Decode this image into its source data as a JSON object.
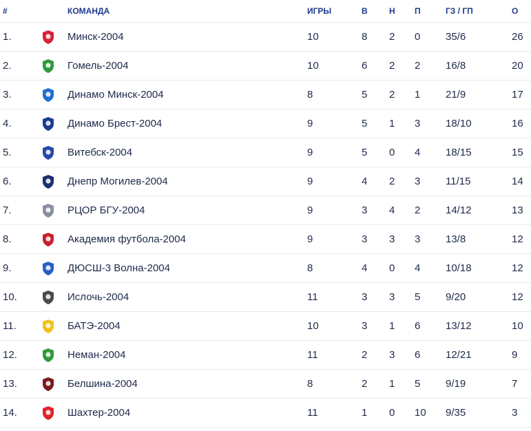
{
  "header": {
    "rank": "#",
    "team": "КОМАНДА",
    "games": "ИГРЫ",
    "wins": "В",
    "draws": "Н",
    "losses": "П",
    "goals": "ГЗ / ГП",
    "points": "О"
  },
  "rows": [
    {
      "rank": "1.",
      "team": "Минск-2004",
      "games": "10",
      "w": "8",
      "d": "2",
      "l": "0",
      "goals": "35/6",
      "pts": "26",
      "logo": "minsk-logo",
      "color": "#d8233a"
    },
    {
      "rank": "2.",
      "team": "Гомель-2004",
      "games": "10",
      "w": "6",
      "d": "2",
      "l": "2",
      "goals": "16/8",
      "pts": "20",
      "logo": "gomel-logo",
      "color": "#2e9a3e"
    },
    {
      "rank": "3.",
      "team": "Динамо Минск-2004",
      "games": "8",
      "w": "5",
      "d": "2",
      "l": "1",
      "goals": "21/9",
      "pts": "17",
      "logo": "dinamo-minsk-logo",
      "color": "#1f6fd0"
    },
    {
      "rank": "4.",
      "team": "Динамо Брест-2004",
      "games": "9",
      "w": "5",
      "d": "1",
      "l": "3",
      "goals": "18/10",
      "pts": "16",
      "logo": "dinamo-brest-logo",
      "color": "#1a3d8f"
    },
    {
      "rank": "5.",
      "team": "Витебск-2004",
      "games": "9",
      "w": "5",
      "d": "0",
      "l": "4",
      "goals": "18/15",
      "pts": "15",
      "logo": "vitebsk-logo",
      "color": "#2547a8"
    },
    {
      "rank": "6.",
      "team": "Днепр Могилев-2004",
      "games": "9",
      "w": "4",
      "d": "2",
      "l": "3",
      "goals": "11/15",
      "pts": "14",
      "logo": "dnepr-logo",
      "color": "#1b2f73"
    },
    {
      "rank": "7.",
      "team": "РЦОР БГУ-2004",
      "games": "9",
      "w": "3",
      "d": "4",
      "l": "2",
      "goals": "14/12",
      "pts": "13",
      "logo": "rcor-bgu-logo",
      "color": "#8a8fa0"
    },
    {
      "rank": "8.",
      "team": "Академия футбола-2004",
      "games": "9",
      "w": "3",
      "d": "3",
      "l": "3",
      "goals": "13/8",
      "pts": "12",
      "logo": "academy-logo",
      "color": "#c8202f"
    },
    {
      "rank": "9.",
      "team": "ДЮСШ-3 Волна-2004",
      "games": "8",
      "w": "4",
      "d": "0",
      "l": "4",
      "goals": "10/18",
      "pts": "12",
      "logo": "volna-logo",
      "color": "#2a5fc4"
    },
    {
      "rank": "10.",
      "team": "Ислочь-2004",
      "games": "11",
      "w": "3",
      "d": "3",
      "l": "5",
      "goals": "9/20",
      "pts": "12",
      "logo": "isloch-logo",
      "color": "#4a4a4a"
    },
    {
      "rank": "11.",
      "team": "БАТЭ-2004",
      "games": "10",
      "w": "3",
      "d": "1",
      "l": "6",
      "goals": "13/12",
      "pts": "10",
      "logo": "bate-logo",
      "color": "#f2c21b"
    },
    {
      "rank": "12.",
      "team": "Неман-2004",
      "games": "11",
      "w": "2",
      "d": "3",
      "l": "6",
      "goals": "12/21",
      "pts": "9",
      "logo": "neman-logo",
      "color": "#2f9a3a"
    },
    {
      "rank": "13.",
      "team": "Белшина-2004",
      "games": "8",
      "w": "2",
      "d": "1",
      "l": "5",
      "goals": "9/19",
      "pts": "7",
      "logo": "belshina-logo",
      "color": "#7a1a1f"
    },
    {
      "rank": "14.",
      "team": "Шахтер-2004",
      "games": "11",
      "w": "1",
      "d": "0",
      "l": "10",
      "goals": "9/35",
      "pts": "3",
      "logo": "shakhtyor-logo",
      "color": "#e0242f"
    }
  ]
}
